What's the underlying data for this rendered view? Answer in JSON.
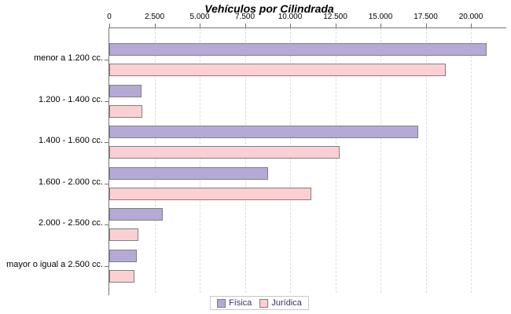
{
  "chart_data": {
    "type": "bar",
    "orientation": "horizontal",
    "title": "Vehículos por Cilindrada",
    "categories": [
      "menor a 1.200 cc.",
      "1.200 - 1.400 cc.",
      "1.400 - 1.600 cc.",
      "1.600 - 2.000 cc.",
      "2.000 - 2.500 cc.",
      "mayor o igual a 2.500 cc."
    ],
    "series": [
      {
        "name": "Física",
        "color": "#b5aad6",
        "values": [
          20800,
          1700,
          17000,
          8700,
          2850,
          1450
        ]
      },
      {
        "name": "Jurídica",
        "color": "#fcd0d3",
        "values": [
          18500,
          1750,
          12650,
          11100,
          1500,
          1320
        ]
      }
    ],
    "xlim": [
      0,
      20000
    ],
    "x_ticks": [
      0,
      2500,
      5000,
      7500,
      10000,
      12500,
      15000,
      17500,
      20000
    ],
    "x_tick_labels": [
      "0",
      "2.500",
      "5.000",
      "7.500",
      "10.000",
      "12.500",
      "15.000",
      "17.500",
      "20.000"
    ],
    "grid": "vertical-dashed",
    "legend_position": "bottom",
    "colors": {
      "axis": "#737373",
      "gridline": "#dcdcdc",
      "bar_border": "#7f7f7f",
      "series_fisica": "#b5aad6",
      "series_juridica": "#fcd0d3",
      "legend_text": "#403063",
      "legend_border": "#c8c8c8",
      "background": "#ffffff",
      "text": "#000000"
    }
  }
}
